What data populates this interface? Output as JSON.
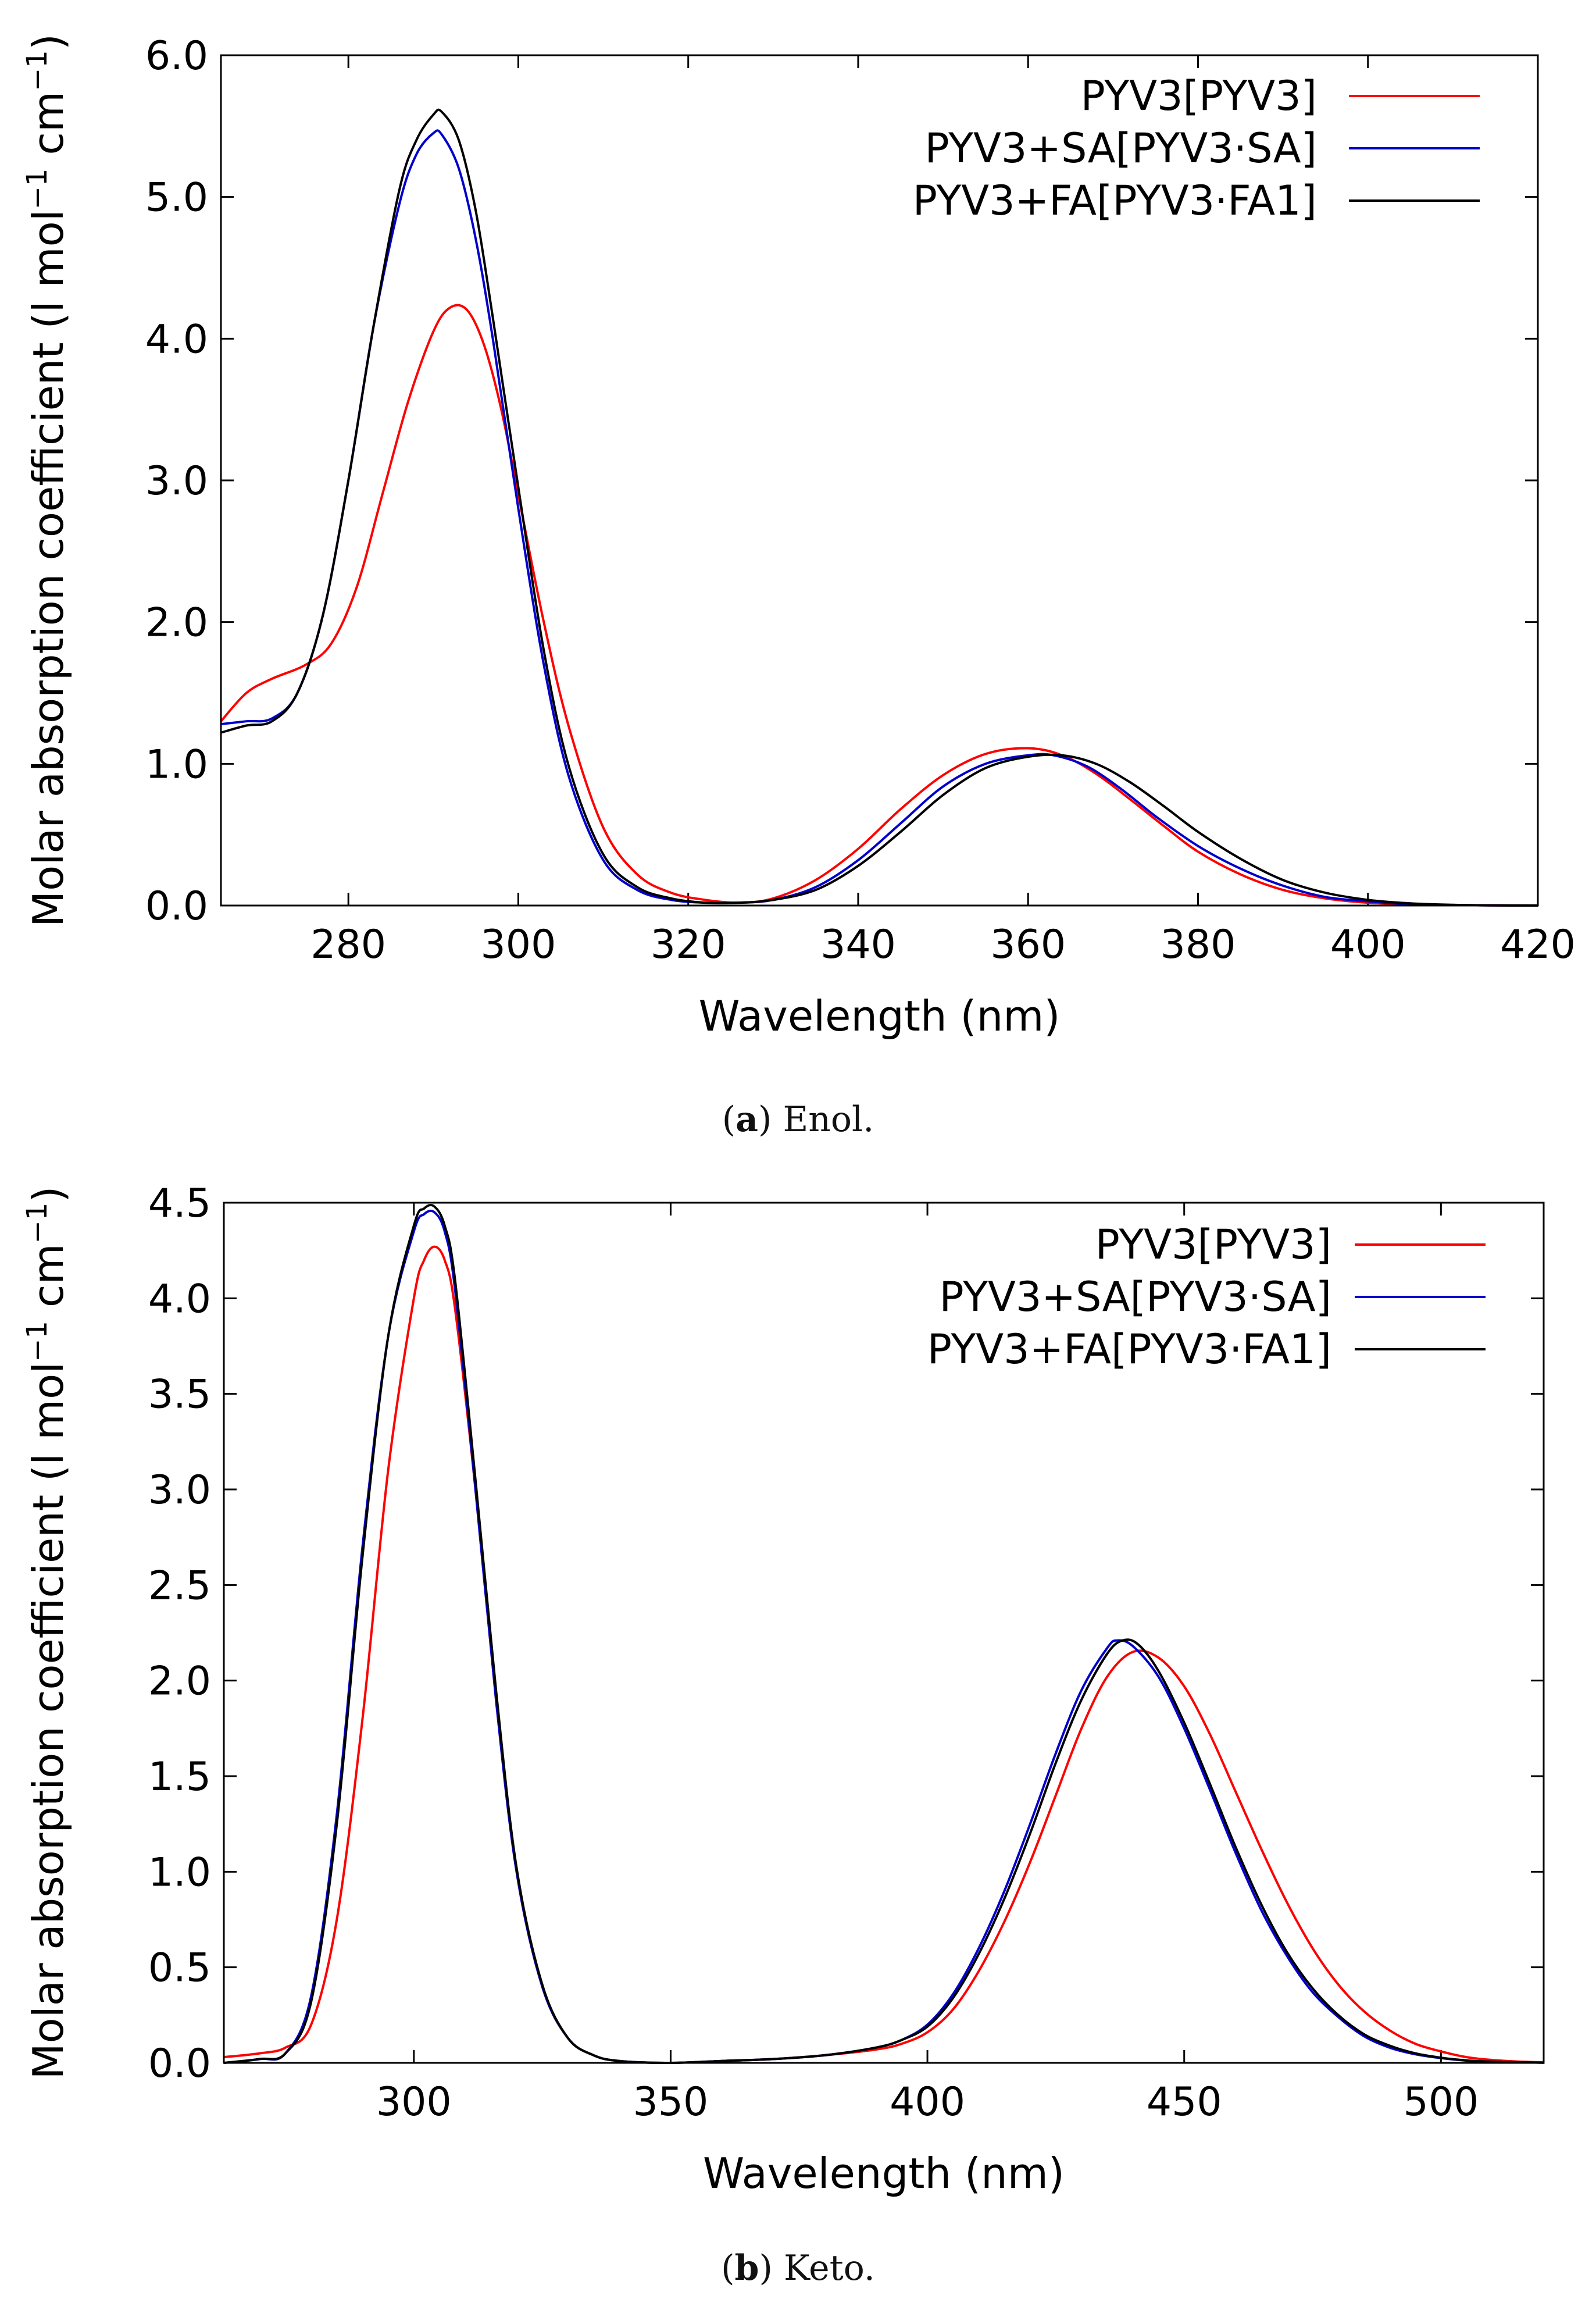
{
  "colors": {
    "red": "#ff0000",
    "blue": "#0000cc",
    "black": "#000000"
  },
  "chart_data": [
    {
      "type": "line",
      "caption_letter": "a",
      "caption_text": "Enol.",
      "xlabel": "Wavelength (nm)",
      "ylabel": "Molar absorption coefficient (l mol−1 cm−1)",
      "ylabel_parts": {
        "a": "Molar absorption coefficient (l mol",
        "sup1": "−1",
        "b": " cm",
        "sup2": "−1",
        "c": ")"
      },
      "xlim": [
        265,
        420
      ],
      "ylim": [
        0,
        6.0
      ],
      "xticks": [
        280,
        300,
        320,
        340,
        360,
        380,
        400,
        420
      ],
      "yticks": [
        0.0,
        1.0,
        2.0,
        3.0,
        4.0,
        5.0,
        6.0
      ],
      "legend_position": "top-right",
      "series": [
        {
          "name": "PYV3[PYV3]",
          "color": "#ff0000",
          "x": [
            265,
            268,
            271,
            275,
            278,
            281,
            284,
            287,
            290,
            292,
            294,
            296,
            298,
            300,
            303,
            306,
            310,
            314,
            318,
            322,
            326,
            330,
            335,
            340,
            345,
            350,
            355,
            360,
            364,
            368,
            372,
            376,
            380,
            385,
            390,
            395,
            400,
            405,
            410,
            415,
            420
          ],
          "y": [
            1.3,
            1.5,
            1.6,
            1.7,
            1.85,
            2.25,
            2.9,
            3.55,
            4.05,
            4.22,
            4.2,
            3.95,
            3.5,
            2.9,
            2.0,
            1.25,
            0.55,
            0.22,
            0.09,
            0.04,
            0.02,
            0.05,
            0.18,
            0.4,
            0.68,
            0.92,
            1.07,
            1.11,
            1.06,
            0.93,
            0.75,
            0.56,
            0.38,
            0.22,
            0.11,
            0.05,
            0.02,
            0.01,
            0.004,
            0.001,
            0.0
          ]
        },
        {
          "name": "PYV3+SA[PYV3·SA]",
          "color": "#0000cc",
          "x": [
            265,
            268,
            271,
            274,
            277,
            280,
            283,
            286,
            288,
            290,
            291,
            293,
            295,
            297,
            300,
            303,
            306,
            310,
            314,
            318,
            322,
            326,
            330,
            335,
            340,
            345,
            350,
            355,
            360,
            363,
            367,
            371,
            375,
            380,
            385,
            390,
            395,
            400,
            405,
            410,
            415,
            420
          ],
          "y": [
            1.28,
            1.3,
            1.32,
            1.5,
            2.05,
            3.0,
            4.1,
            4.95,
            5.3,
            5.45,
            5.44,
            5.2,
            4.7,
            4.0,
            2.8,
            1.7,
            0.9,
            0.32,
            0.11,
            0.04,
            0.02,
            0.02,
            0.04,
            0.13,
            0.32,
            0.58,
            0.84,
            1.0,
            1.06,
            1.06,
            0.98,
            0.82,
            0.63,
            0.42,
            0.26,
            0.14,
            0.06,
            0.03,
            0.01,
            0.004,
            0.001,
            0.0
          ]
        },
        {
          "name": "PYV3+FA[PYV3·FA1]",
          "color": "#000000",
          "x": [
            265,
            268,
            271,
            274,
            277,
            280,
            283,
            286,
            288,
            290,
            291,
            293,
            295,
            297,
            300,
            303,
            306,
            310,
            314,
            318,
            322,
            326,
            330,
            335,
            340,
            345,
            350,
            355,
            360,
            364,
            368,
            372,
            376,
            380,
            385,
            390,
            395,
            400,
            405,
            410,
            415,
            420
          ],
          "y": [
            1.22,
            1.27,
            1.3,
            1.5,
            2.05,
            3.0,
            4.1,
            5.05,
            5.4,
            5.58,
            5.6,
            5.4,
            4.9,
            4.15,
            2.95,
            1.8,
            0.97,
            0.36,
            0.13,
            0.05,
            0.02,
            0.02,
            0.04,
            0.11,
            0.28,
            0.52,
            0.78,
            0.97,
            1.05,
            1.06,
            1.0,
            0.87,
            0.7,
            0.52,
            0.33,
            0.18,
            0.09,
            0.04,
            0.015,
            0.005,
            0.001,
            0.0
          ]
        }
      ]
    },
    {
      "type": "line",
      "caption_letter": "b",
      "caption_text": "Keto.",
      "xlabel": "Wavelength (nm)",
      "ylabel": "Molar absorption coefficient (l mol−1 cm−1)",
      "ylabel_parts": {
        "a": "Molar absorption coefficient (l mol",
        "sup1": "−1",
        "b": " cm",
        "sup2": "−1",
        "c": ")"
      },
      "xlim": [
        263,
        520
      ],
      "ylim": [
        0,
        4.5
      ],
      "xticks": [
        300,
        350,
        400,
        450,
        500
      ],
      "yticks": [
        0.0,
        0.5,
        1.0,
        1.5,
        2.0,
        2.5,
        3.0,
        3.5,
        4.0,
        4.5
      ],
      "legend_position": "top-right",
      "series": [
        {
          "name": "PYV3[PYV3]",
          "color": "#ff0000",
          "x": [
            263,
            270,
            275,
            280,
            285,
            290,
            295,
            300,
            302,
            304,
            306,
            308,
            312,
            316,
            320,
            325,
            330,
            335,
            340,
            350,
            360,
            370,
            380,
            390,
            395,
            400,
            405,
            410,
            415,
            420,
            425,
            430,
            435,
            440,
            445,
            450,
            455,
            460,
            465,
            470,
            475,
            480,
            485,
            490,
            495,
            500,
            505,
            510,
            515,
            520
          ],
          "y": [
            0.03,
            0.05,
            0.08,
            0.2,
            0.75,
            1.8,
            3.1,
            4.0,
            4.2,
            4.27,
            4.2,
            3.95,
            3.0,
            1.9,
            1.0,
            0.4,
            0.13,
            0.04,
            0.01,
            0.0,
            0.01,
            0.02,
            0.04,
            0.07,
            0.1,
            0.16,
            0.28,
            0.48,
            0.74,
            1.05,
            1.4,
            1.75,
            2.02,
            2.15,
            2.12,
            1.97,
            1.72,
            1.42,
            1.12,
            0.84,
            0.6,
            0.41,
            0.27,
            0.17,
            0.1,
            0.06,
            0.03,
            0.015,
            0.007,
            0.003
          ]
        },
        {
          "name": "PYV3+SA[PYV3·SA]",
          "color": "#0000cc",
          "x": [
            263,
            270,
            275,
            280,
            285,
            290,
            295,
            300,
            302,
            304,
            306,
            308,
            312,
            316,
            320,
            325,
            330,
            335,
            340,
            350,
            360,
            370,
            380,
            390,
            395,
            400,
            405,
            410,
            415,
            420,
            425,
            430,
            435,
            437,
            440,
            445,
            450,
            455,
            460,
            465,
            470,
            475,
            480,
            485,
            490,
            495,
            500,
            505,
            510,
            515,
            520
          ],
          "y": [
            0.0,
            0.02,
            0.05,
            0.35,
            1.3,
            2.7,
            3.8,
            4.35,
            4.44,
            4.45,
            4.35,
            4.05,
            3.0,
            1.9,
            1.0,
            0.4,
            0.13,
            0.04,
            0.01,
            0.0,
            0.01,
            0.02,
            0.04,
            0.08,
            0.12,
            0.2,
            0.36,
            0.6,
            0.9,
            1.25,
            1.62,
            1.95,
            2.17,
            2.21,
            2.18,
            2.02,
            1.75,
            1.43,
            1.1,
            0.8,
            0.56,
            0.37,
            0.24,
            0.14,
            0.08,
            0.045,
            0.025,
            0.012,
            0.006,
            0.003,
            0.001
          ]
        },
        {
          "name": "PYV3+FA[PYV3·FA1]",
          "color": "#000000",
          "x": [
            263,
            270,
            275,
            280,
            285,
            290,
            295,
            300,
            302,
            304,
            306,
            308,
            312,
            316,
            320,
            325,
            330,
            335,
            340,
            350,
            360,
            370,
            380,
            390,
            395,
            400,
            405,
            410,
            415,
            420,
            425,
            430,
            435,
            438,
            441,
            445,
            450,
            455,
            460,
            465,
            470,
            475,
            480,
            485,
            490,
            495,
            500,
            505,
            510,
            515,
            520
          ],
          "y": [
            0.0,
            0.02,
            0.05,
            0.32,
            1.25,
            2.65,
            3.8,
            4.38,
            4.47,
            4.48,
            4.38,
            4.1,
            3.05,
            1.95,
            1.02,
            0.41,
            0.13,
            0.04,
            0.01,
            0.0,
            0.01,
            0.02,
            0.04,
            0.08,
            0.12,
            0.19,
            0.34,
            0.57,
            0.86,
            1.2,
            1.57,
            1.9,
            2.14,
            2.21,
            2.19,
            2.05,
            1.78,
            1.46,
            1.13,
            0.83,
            0.58,
            0.39,
            0.25,
            0.15,
            0.09,
            0.05,
            0.027,
            0.013,
            0.006,
            0.003,
            0.001
          ]
        }
      ]
    }
  ]
}
